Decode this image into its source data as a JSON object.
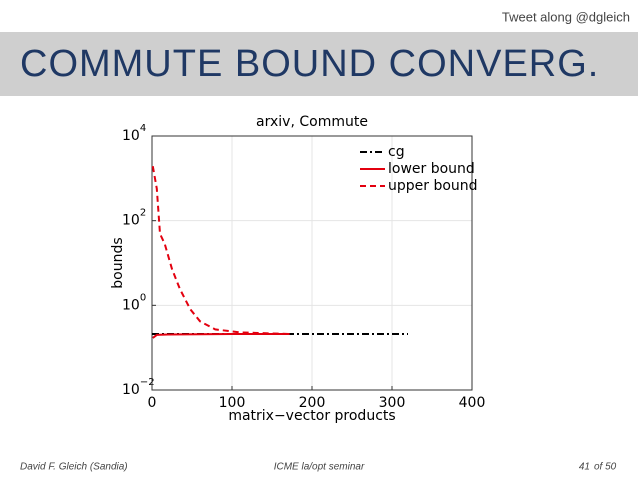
{
  "header": {
    "tweet": "Tweet along @dgleich",
    "title": "COMMUTE BOUND CONVERG."
  },
  "chart_data": {
    "type": "line",
    "title": "arxiv, Commute",
    "x_label": "matrix−vector products",
    "y_label": "bounds",
    "xlim": [
      0,
      400
    ],
    "xticks": [
      0,
      100,
      200,
      300,
      400
    ],
    "ylim": [
      0.01,
      10000
    ],
    "log_y": true,
    "yticks": [
      {
        "value": 0.01,
        "label": "10",
        "exponent": "−2"
      },
      {
        "value": 1,
        "label": "10",
        "exponent": "0"
      },
      {
        "value": 100,
        "label": "10",
        "exponent": "2"
      },
      {
        "value": 10000,
        "label": "10",
        "exponent": "4"
      }
    ],
    "grid": true,
    "legend": "upper-right",
    "series": [
      {
        "name": "cg",
        "color": "#000000",
        "style": "-.",
        "x": [
          0,
          100,
          200,
          320
        ],
        "values": [
          0.21,
          0.21,
          0.21,
          0.21
        ]
      },
      {
        "name": "lower bound",
        "color": "#e3000f",
        "style": "-",
        "x": [
          1,
          6,
          20,
          100,
          172
        ],
        "values": [
          0.17,
          0.2,
          0.205,
          0.21,
          0.21
        ]
      },
      {
        "name": "upper bound",
        "color": "#e3000f",
        "style": "--",
        "x": [
          1,
          6,
          10,
          16,
          25,
          35,
          48,
          60,
          79,
          110,
          172
        ],
        "values": [
          1940,
          570,
          49,
          28,
          7.2,
          2.4,
          0.8,
          0.42,
          0.27,
          0.23,
          0.21
        ]
      }
    ]
  },
  "footer": {
    "author": "David F. Gleich (Sandia)",
    "venue": "ICME la/opt seminar",
    "page": "41",
    "total": "of 50"
  }
}
